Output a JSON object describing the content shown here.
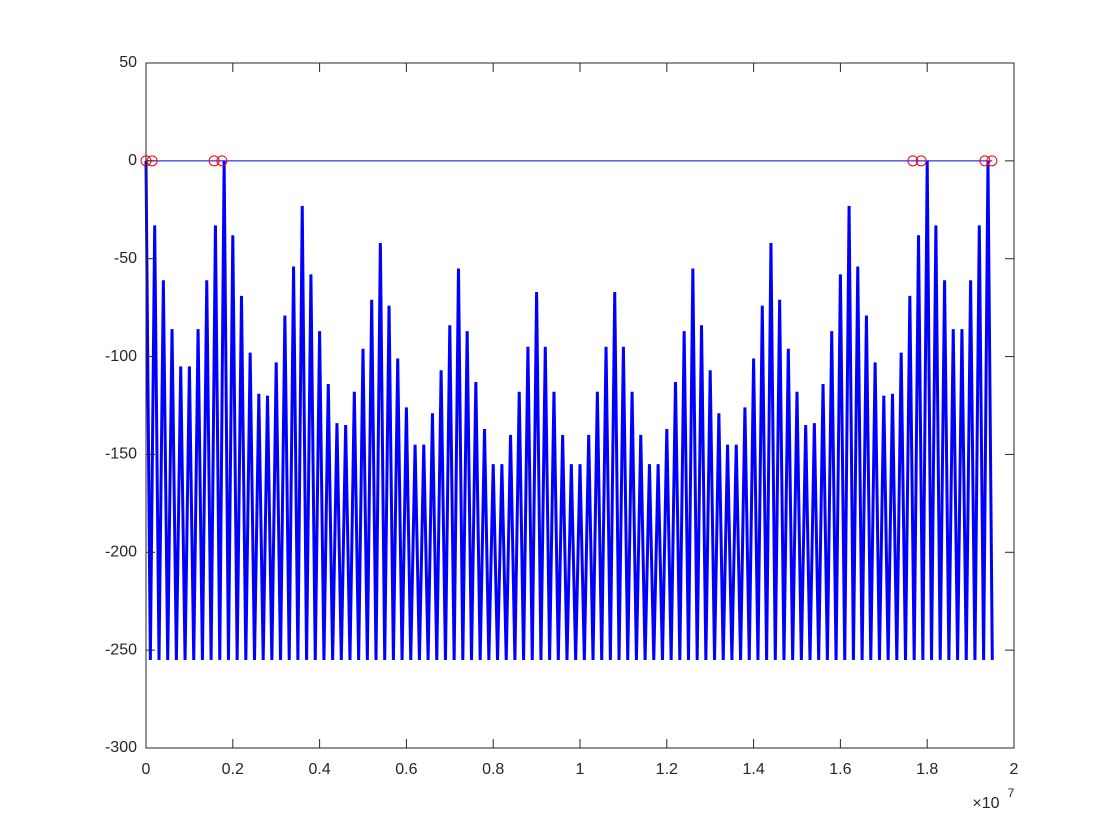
{
  "chart_data": {
    "type": "line",
    "xlim": [
      0,
      2
    ],
    "ylim": [
      -300,
      50
    ],
    "xticks": [
      0,
      0.2,
      0.4,
      0.6,
      0.8,
      1,
      1.2,
      1.4,
      1.6,
      1.8,
      2
    ],
    "yticks": [
      -300,
      -250,
      -200,
      -150,
      -100,
      -50,
      0,
      50
    ],
    "x_multiplier": {
      "base": "×10",
      "exponent": "7"
    },
    "grid": false,
    "box": true,
    "series": [
      {
        "color": "#0000ff",
        "x": [
          0,
          0.01,
          0.02,
          0.03,
          0.04,
          0.05,
          0.06,
          0.07,
          0.08,
          0.09,
          0.1,
          0.11,
          0.12,
          0.13,
          0.14,
          0.15,
          0.16,
          0.17,
          0.18,
          0.19,
          0.2,
          0.21,
          0.22,
          0.23,
          0.24,
          0.25,
          0.26,
          0.27,
          0.28,
          0.29,
          0.3,
          0.31,
          0.32,
          0.33,
          0.34,
          0.35,
          0.36,
          0.37,
          0.38,
          0.39,
          0.4,
          0.41,
          0.42,
          0.43,
          0.44,
          0.45,
          0.46,
          0.47,
          0.48,
          0.49,
          0.5,
          0.51,
          0.52,
          0.53,
          0.54,
          0.55,
          0.56,
          0.57,
          0.58,
          0.59,
          0.6,
          0.61,
          0.62,
          0.63,
          0.64,
          0.65,
          0.66,
          0.67,
          0.68,
          0.69,
          0.7,
          0.71,
          0.72,
          0.73,
          0.74,
          0.75,
          0.76,
          0.77,
          0.78,
          0.79,
          0.8,
          0.81,
          0.82,
          0.83,
          0.84,
          0.85,
          0.86,
          0.87,
          0.88,
          0.89,
          0.9,
          0.91,
          0.92,
          0.93,
          0.94,
          0.95,
          0.96,
          0.97,
          0.98,
          0.99,
          1,
          1.01,
          1.02,
          1.03,
          1.04,
          1.05,
          1.06,
          1.07,
          1.08,
          1.09,
          1.1,
          1.11,
          1.12,
          1.13,
          1.14,
          1.15,
          1.16,
          1.17,
          1.18,
          1.19,
          1.2,
          1.21,
          1.22,
          1.23,
          1.24,
          1.25,
          1.26,
          1.27,
          1.28,
          1.29,
          1.3,
          1.31,
          1.32,
          1.33,
          1.34,
          1.35,
          1.36,
          1.37,
          1.38,
          1.39,
          1.4,
          1.41,
          1.42,
          1.43,
          1.44,
          1.45,
          1.46,
          1.47,
          1.48,
          1.49,
          1.5,
          1.51,
          1.52,
          1.53,
          1.54,
          1.55,
          1.56,
          1.57,
          1.58,
          1.59,
          1.6,
          1.61,
          1.62,
          1.63,
          1.64,
          1.65,
          1.66,
          1.67,
          1.68,
          1.69,
          1.7,
          1.71,
          1.72,
          1.73,
          1.74,
          1.75,
          1.76,
          1.77,
          1.78,
          1.79,
          1.8,
          1.81,
          1.82,
          1.83,
          1.84,
          1.85,
          1.86,
          1.87,
          1.88,
          1.89,
          1.9,
          1.91,
          1.92,
          1.93,
          1.94,
          1.95
        ],
        "values": [
          0,
          -255,
          -33,
          -255,
          -61,
          -255,
          -86,
          -255,
          -105,
          -255,
          -105,
          -255,
          -86,
          -255,
          -61,
          -255,
          -33,
          -255,
          0,
          -255,
          -38,
          -255,
          -69,
          -255,
          -98,
          -255,
          -119,
          -255,
          -120,
          -255,
          -103,
          -255,
          -79,
          -255,
          -54,
          -255,
          -23,
          -255,
          -58,
          -255,
          -87,
          -255,
          -114,
          -255,
          -134,
          -255,
          -135,
          -255,
          -118,
          -255,
          -96,
          -255,
          -71,
          -255,
          -42,
          -255,
          -74,
          -255,
          -101,
          -255,
          -126,
          -255,
          -145,
          -255,
          -145,
          -255,
          -129,
          -255,
          -107,
          -255,
          -84,
          -255,
          -55,
          -255,
          -87,
          -255,
          -113,
          -255,
          -137,
          -255,
          -155,
          -255,
          -155,
          -255,
          -140,
          -255,
          -118,
          -255,
          -95,
          -255,
          -67,
          -255,
          -95,
          -255,
          -118,
          -255,
          -140,
          -255,
          -155,
          -255,
          -155,
          -255,
          -140,
          -255,
          -118,
          -255,
          -95,
          -255,
          -67,
          -255,
          -95,
          -255,
          -118,
          -255,
          -140,
          -255,
          -155,
          -255,
          -155,
          -255,
          -137,
          -255,
          -113,
          -255,
          -87,
          -255,
          -55,
          -255,
          -84,
          -255,
          -107,
          -255,
          -129,
          -255,
          -145,
          -255,
          -145,
          -255,
          -126,
          -255,
          -101,
          -255,
          -74,
          -255,
          -42,
          -255,
          -71,
          -255,
          -96,
          -255,
          -118,
          -255,
          -135,
          -255,
          -134,
          -255,
          -114,
          -255,
          -87,
          -255,
          -58,
          -255,
          -23,
          -255,
          -54,
          -255,
          -79,
          -255,
          -103,
          -255,
          -120,
          -255,
          -119,
          -255,
          -98,
          -255,
          -69,
          -255,
          -38,
          -255,
          0,
          -255,
          -33,
          -255,
          -61,
          -255,
          -86,
          -255,
          -86,
          -255,
          -61,
          -255,
          -33,
          -255,
          0,
          -255
        ]
      },
      {
        "color": "#0000ff",
        "x": [
          0,
          1.95
        ],
        "values": [
          0,
          0
        ]
      },
      {
        "color": "#ff0000",
        "marker": "circle",
        "x": [
          0,
          0.014,
          0.157,
          0.175,
          1.767,
          1.786,
          1.933,
          1.949
        ],
        "values": [
          0,
          0,
          0,
          0,
          0,
          0,
          0,
          0
        ]
      }
    ]
  }
}
